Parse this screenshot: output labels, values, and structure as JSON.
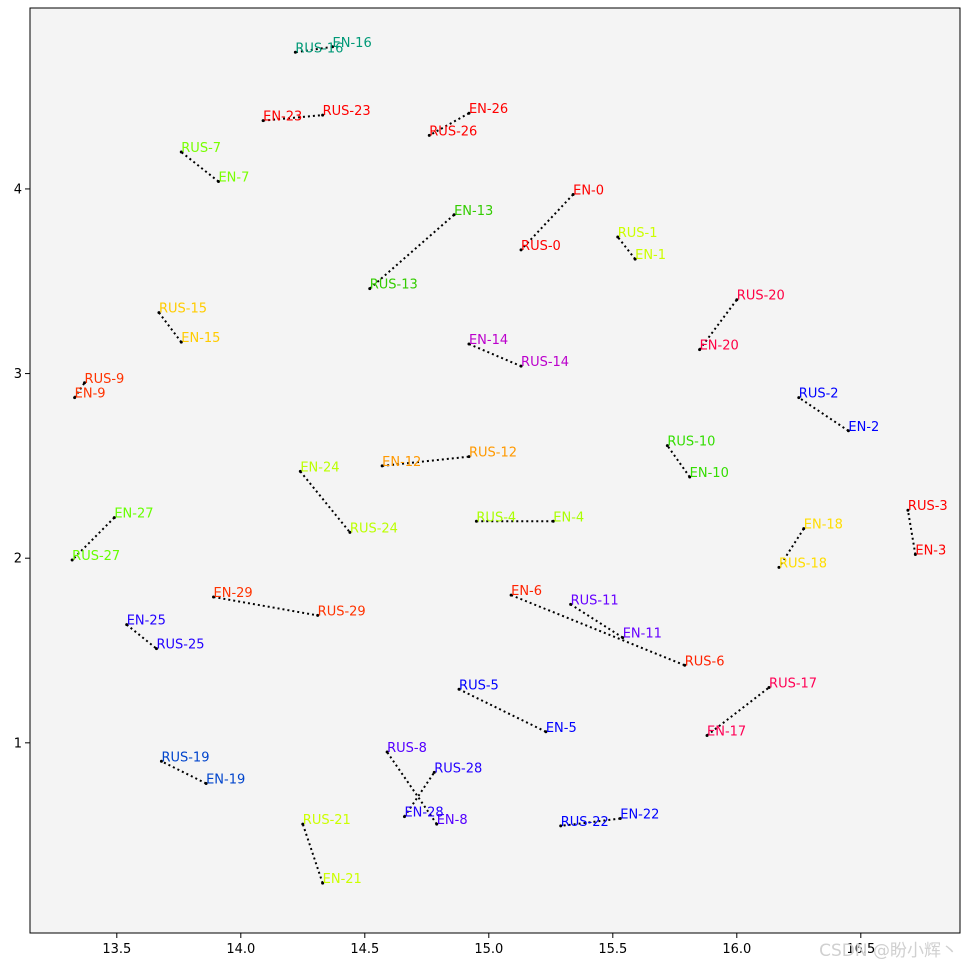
{
  "chart_data": {
    "type": "scatter",
    "title": "",
    "xlabel": "",
    "ylabel": "",
    "xlim": [
      13.15,
      16.9
    ],
    "ylim": [
      -0.03,
      4.98
    ],
    "xticks": [
      13.5,
      14.0,
      14.5,
      15.0,
      15.5,
      16.0,
      16.5
    ],
    "xtick_labels": [
      "13.5",
      "14.0",
      "14.5",
      "15.0",
      "15.5",
      "16.0",
      "16.5"
    ],
    "yticks": [
      1,
      2,
      3,
      4
    ],
    "ytick_labels": [
      "1",
      "2",
      "3",
      "4"
    ],
    "grid": false,
    "background": "#f4f4f4",
    "connector_style": "dotted",
    "pairs": [
      {
        "id": "0",
        "color": "#ff0000",
        "en": {
          "label": "EN-0",
          "x": 15.34,
          "y": 3.97
        },
        "rus": {
          "label": "RUS-0",
          "x": 15.13,
          "y": 3.67
        }
      },
      {
        "id": "1",
        "color": "#ccff00",
        "en": {
          "label": "EN-1",
          "x": 15.59,
          "y": 3.62
        },
        "rus": {
          "label": "RUS-1",
          "x": 15.52,
          "y": 3.74
        }
      },
      {
        "id": "2",
        "color": "#0000ff",
        "en": {
          "label": "EN-2",
          "x": 16.45,
          "y": 2.69
        },
        "rus": {
          "label": "RUS-2",
          "x": 16.25,
          "y": 2.87
        }
      },
      {
        "id": "3",
        "color": "#ff0000",
        "en": {
          "label": "EN-3",
          "x": 16.72,
          "y": 2.02
        },
        "rus": {
          "label": "RUS-3",
          "x": 16.69,
          "y": 2.26
        }
      },
      {
        "id": "4",
        "color": "#aaff00",
        "en": {
          "label": "EN-4",
          "x": 15.26,
          "y": 2.2
        },
        "rus": {
          "label": "RUS-4",
          "x": 14.95,
          "y": 2.2
        }
      },
      {
        "id": "5",
        "color": "#0000ff",
        "en": {
          "label": "EN-5",
          "x": 15.23,
          "y": 1.06
        },
        "rus": {
          "label": "RUS-5",
          "x": 14.88,
          "y": 1.29
        }
      },
      {
        "id": "6",
        "color": "#ff2200",
        "en": {
          "label": "EN-6",
          "x": 15.09,
          "y": 1.8
        },
        "rus": {
          "label": "RUS-6",
          "x": 15.79,
          "y": 1.42
        }
      },
      {
        "id": "7",
        "color": "#77ff00",
        "en": {
          "label": "EN-7",
          "x": 13.91,
          "y": 4.04
        },
        "rus": {
          "label": "RUS-7",
          "x": 13.76,
          "y": 4.2
        }
      },
      {
        "id": "8",
        "color": "#5500ff",
        "en": {
          "label": "EN-8",
          "x": 14.79,
          "y": 0.56
        },
        "rus": {
          "label": "RUS-8",
          "x": 14.59,
          "y": 0.95
        }
      },
      {
        "id": "9",
        "color": "#ff3300",
        "en": {
          "label": "EN-9",
          "x": 13.33,
          "y": 2.87
        },
        "rus": {
          "label": "RUS-9",
          "x": 13.37,
          "y": 2.95
        }
      },
      {
        "id": "10",
        "color": "#33dd00",
        "en": {
          "label": "EN-10",
          "x": 15.81,
          "y": 2.44
        },
        "rus": {
          "label": "RUS-10",
          "x": 15.72,
          "y": 2.61
        }
      },
      {
        "id": "11",
        "color": "#6600ff",
        "en": {
          "label": "EN-11",
          "x": 15.54,
          "y": 1.57
        },
        "rus": {
          "label": "RUS-11",
          "x": 15.33,
          "y": 1.75
        }
      },
      {
        "id": "12",
        "color": "#ff9900",
        "en": {
          "label": "EN-12",
          "x": 14.57,
          "y": 2.5
        },
        "rus": {
          "label": "RUS-12",
          "x": 14.92,
          "y": 2.55
        }
      },
      {
        "id": "13",
        "color": "#33cc00",
        "en": {
          "label": "EN-13",
          "x": 14.86,
          "y": 3.86
        },
        "rus": {
          "label": "RUS-13",
          "x": 14.52,
          "y": 3.46
        }
      },
      {
        "id": "14",
        "color": "#bb00cc",
        "en": {
          "label": "EN-14",
          "x": 14.92,
          "y": 3.16
        },
        "rus": {
          "label": "RUS-14",
          "x": 15.13,
          "y": 3.04
        }
      },
      {
        "id": "15",
        "color": "#ffcc00",
        "en": {
          "label": "EN-15",
          "x": 13.76,
          "y": 3.17
        },
        "rus": {
          "label": "RUS-15",
          "x": 13.67,
          "y": 3.33
        }
      },
      {
        "id": "16",
        "color": "#009977",
        "en": {
          "label": "EN-16",
          "x": 14.37,
          "y": 4.77
        },
        "rus": {
          "label": "RUS-16",
          "x": 14.22,
          "y": 4.74
        }
      },
      {
        "id": "17",
        "color": "#ff0055",
        "en": {
          "label": "EN-17",
          "x": 15.88,
          "y": 1.04
        },
        "rus": {
          "label": "RUS-17",
          "x": 16.13,
          "y": 1.3
        }
      },
      {
        "id": "18",
        "color": "#ffdd00",
        "en": {
          "label": "EN-18",
          "x": 16.27,
          "y": 2.16
        },
        "rus": {
          "label": "RUS-18",
          "x": 16.17,
          "y": 1.95
        }
      },
      {
        "id": "19",
        "color": "#0044cc",
        "en": {
          "label": "EN-19",
          "x": 13.86,
          "y": 0.78
        },
        "rus": {
          "label": "RUS-19",
          "x": 13.68,
          "y": 0.9
        }
      },
      {
        "id": "20",
        "color": "#ff0044",
        "en": {
          "label": "EN-20",
          "x": 15.85,
          "y": 3.13
        },
        "rus": {
          "label": "RUS-20",
          "x": 16.0,
          "y": 3.4
        }
      },
      {
        "id": "21",
        "color": "#ccff00",
        "en": {
          "label": "EN-21",
          "x": 14.33,
          "y": 0.24
        },
        "rus": {
          "label": "RUS-21",
          "x": 14.25,
          "y": 0.56
        }
      },
      {
        "id": "22",
        "color": "#0000ff",
        "en": {
          "label": "EN-22",
          "x": 15.53,
          "y": 0.59
        },
        "rus": {
          "label": "RUS-22",
          "x": 15.29,
          "y": 0.55
        }
      },
      {
        "id": "23",
        "color": "#ff0000",
        "en": {
          "label": "EN-23",
          "x": 14.09,
          "y": 4.37
        },
        "rus": {
          "label": "RUS-23",
          "x": 14.33,
          "y": 4.4
        }
      },
      {
        "id": "24",
        "color": "#bbff00",
        "en": {
          "label": "EN-24",
          "x": 14.24,
          "y": 2.47
        },
        "rus": {
          "label": "RUS-24",
          "x": 14.44,
          "y": 2.14
        }
      },
      {
        "id": "25",
        "color": "#2200ff",
        "en": {
          "label": "EN-25",
          "x": 13.54,
          "y": 1.64
        },
        "rus": {
          "label": "RUS-25",
          "x": 13.66,
          "y": 1.51
        }
      },
      {
        "id": "26",
        "color": "#ff0000",
        "en": {
          "label": "EN-26",
          "x": 14.92,
          "y": 4.41
        },
        "rus": {
          "label": "RUS-26",
          "x": 14.76,
          "y": 4.29
        }
      },
      {
        "id": "27",
        "color": "#66ff00",
        "en": {
          "label": "EN-27",
          "x": 13.49,
          "y": 2.22
        },
        "rus": {
          "label": "RUS-27",
          "x": 13.32,
          "y": 1.99
        }
      },
      {
        "id": "28",
        "color": "#2200ff",
        "en": {
          "label": "EN-28",
          "x": 14.66,
          "y": 0.6
        },
        "rus": {
          "label": "RUS-28",
          "x": 14.78,
          "y": 0.84
        }
      },
      {
        "id": "29",
        "color": "#ff3300",
        "en": {
          "label": "EN-29",
          "x": 13.89,
          "y": 1.79
        },
        "rus": {
          "label": "RUS-29",
          "x": 14.31,
          "y": 1.69
        }
      }
    ]
  },
  "watermark": "CSDN @盼小辉丶"
}
